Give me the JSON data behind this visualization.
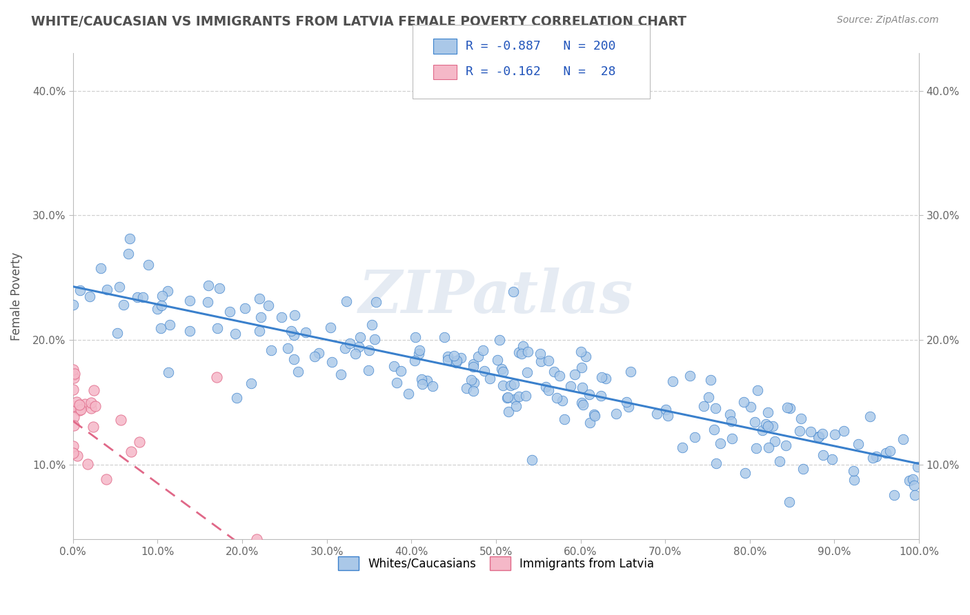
{
  "title": "WHITE/CAUCASIAN VS IMMIGRANTS FROM LATVIA FEMALE POVERTY CORRELATION CHART",
  "source": "Source: ZipAtlas.com",
  "xlabel": "",
  "ylabel": "Female Poverty",
  "watermark": "ZIPatlas",
  "blue_R": -0.887,
  "blue_N": 200,
  "pink_R": -0.162,
  "pink_N": 28,
  "blue_label": "Whites/Caucasians",
  "pink_label": "Immigrants from Latvia",
  "blue_color": "#aac8e8",
  "pink_color": "#f5b8c8",
  "blue_line_color": "#3a80cc",
  "pink_line_color": "#e06888",
  "bg_color": "#ffffff",
  "grid_color": "#d0d0d0",
  "title_color": "#505050",
  "source_color": "#888888",
  "legend_R_color": "#2255bb",
  "xlim": [
    0.0,
    1.0
  ],
  "ylim": [
    0.04,
    0.43
  ],
  "xtick_labels": [
    "0.0%",
    "10.0%",
    "20.0%",
    "30.0%",
    "40.0%",
    "50.0%",
    "60.0%",
    "70.0%",
    "80.0%",
    "90.0%",
    "100.0%"
  ],
  "xtick_vals": [
    0.0,
    0.1,
    0.2,
    0.3,
    0.4,
    0.5,
    0.6,
    0.7,
    0.8,
    0.9,
    1.0
  ],
  "ytick_labels": [
    "10.0%",
    "20.0%",
    "30.0%",
    "40.0%"
  ],
  "ytick_vals": [
    0.1,
    0.2,
    0.3,
    0.4
  ],
  "blue_line_intercept": 0.245,
  "blue_line_slope": -0.145,
  "pink_line_intercept": 0.135,
  "pink_line_slope": -0.5
}
